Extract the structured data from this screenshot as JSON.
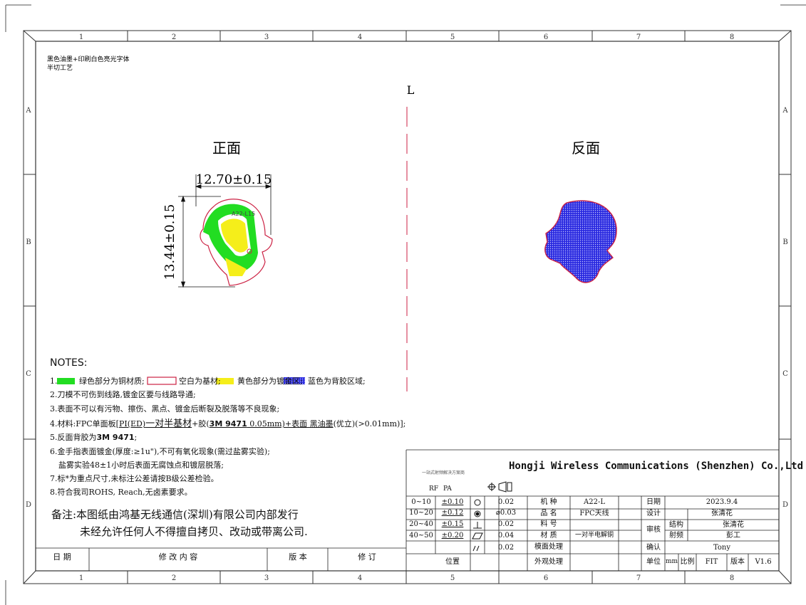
{
  "grid": {
    "columns": [
      "1",
      "2",
      "3",
      "4",
      "5",
      "6",
      "7",
      "8"
    ],
    "rows": [
      "A",
      "B",
      "C",
      "D"
    ]
  },
  "process_note": {
    "line1": "黑色油墨+印刷白色亮光字体",
    "line2": "半切工艺"
  },
  "label_l": "L",
  "front": {
    "title": "正面",
    "width_dim": "12.70±0.15",
    "height_dim": "13.44±0.15",
    "part_mark": "A22-L15"
  },
  "back": {
    "title": "反面"
  },
  "colors": {
    "copper_green": "#22dd22",
    "outline_red": "#cc2244",
    "gold_yellow": "#f5ee1a",
    "adhesive_blue": "#2a2ae0"
  },
  "notes": {
    "heading": "NOTES:",
    "n1_prefix": "1.",
    "n1_green": "绿色部分为铜材质;",
    "n1_blank": "空白为基材;",
    "n1_yellow": "黄色部分为镀金区;",
    "n1_blue": "蓝色为背胶区域;",
    "n2": "2.刀模不可伤到线路,镀金区要与线路导通;",
    "n3": "3.表面不可以有污物、擦伤、黑点、镀金后断裂及脱落等不良现象;",
    "n4_a": "4.材料:FPC单面板[",
    "n4_pi": "PI(ED)",
    "n4_b": "一对半基材",
    "n4_c": "+胶(",
    "n4_tape": "3M 9471",
    "n4_d": " 0.05mm)+表面 ",
    "n4_ink": "黑油墨",
    "n4_e": "(优立)(>0.01mm)];",
    "n5_a": "5.反面背胶为",
    "n5_b": "3M 9471",
    "n5_c": ";",
    "n6": "6.金手指表面镀金(厚度:≥1u\"),不可有氧化现象(需过盐雾实验);",
    "n6b": "盐雾实验48±1小时后表面无腐蚀点和镀层脱落;",
    "n7": "7.标*为重点尺寸,未标注公差请按B级公差检验。",
    "n8": "8.符合我司ROHS, Reach,无卤素要求。"
  },
  "remark": {
    "line1": "备注:本图纸由鸿基无线通信(深圳)有限公司内部发行",
    "line2": "未经允许任何人不得擅自拷贝、改动或带离公司."
  },
  "revision_table": {
    "date": "日 期",
    "content": "修 改 内 容",
    "version": "版 本",
    "revise": "修 订"
  },
  "title_block": {
    "company": "Hongji Wireless Communications (Shenzhen) Co.,Ltd",
    "small_caption": "一站式射频解决方案商",
    "rf": "RF",
    "pa": "PA",
    "tolerances": [
      {
        "range": "0~10",
        "tol": "±0.10"
      },
      {
        "range": "10~20",
        "tol": "±0.12"
      },
      {
        "range": "20~40",
        "tol": "±0.15"
      },
      {
        "range": "40~50",
        "tol": "±0.20"
      }
    ],
    "gdt": [
      "0.02",
      "⌀0.03",
      "0.02",
      "0.04",
      "0.02"
    ],
    "position_label": "位置",
    "model_label": "机 种",
    "model": "A22-L",
    "name_label": "品 名",
    "name": "FPC天线",
    "part_no_label": "料 号",
    "part_no": "",
    "material_label": "材 质",
    "material": "一对半电解铜",
    "surface_label": "模面处理",
    "finish_label": "外观处理",
    "date_label": "日期",
    "date": "2023.9.4",
    "design_label": "设计",
    "designer": "张清花",
    "review_label": "审核",
    "structure_label": "结构",
    "structure": "张清花",
    "rf_label": "射频",
    "rf_reviewer": "彭工",
    "confirm_label": "确认",
    "confirmer": "Tony",
    "unit_label": "单位",
    "unit": "mm",
    "scale_label": "比例",
    "scale": "FIT",
    "version_label": "版本",
    "version": "V1.6"
  }
}
